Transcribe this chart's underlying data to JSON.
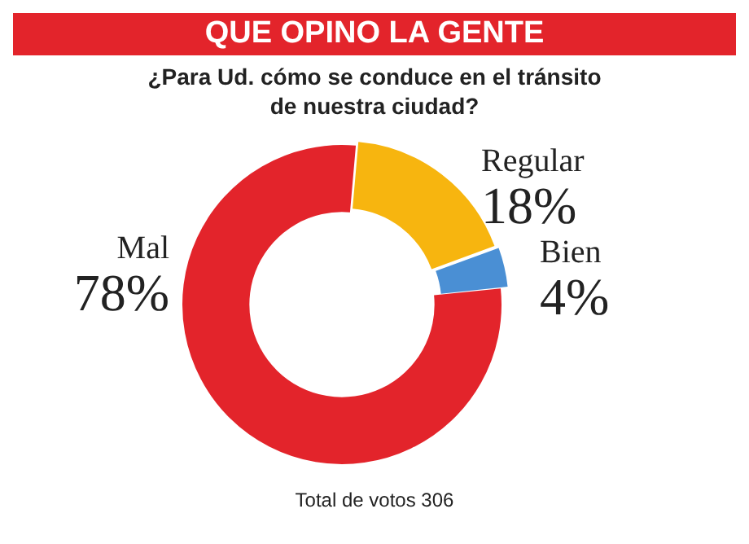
{
  "chart_data": {
    "type": "donut",
    "title": "QUE OPINO LA GENTE",
    "subtitle": "¿Para Ud. cómo se conduce en el tránsito de nuestra ciudad?",
    "categories": [
      "Regular",
      "Bien",
      "Mal"
    ],
    "values": [
      18,
      4,
      78
    ],
    "value_labels": [
      "18%",
      "4%",
      "78%"
    ],
    "colors": [
      "#f7b50f",
      "#4a8fd4",
      "#e3242b"
    ],
    "annotations": [
      "Total de votos 306"
    ]
  }
}
